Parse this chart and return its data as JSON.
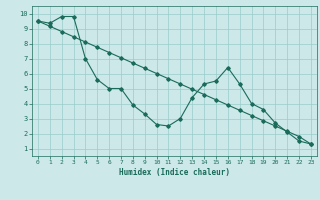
{
  "xlabel": "Humidex (Indice chaleur)",
  "ylabel": "",
  "xlim": [
    -0.5,
    23.5
  ],
  "ylim": [
    0.5,
    10.5
  ],
  "xticks": [
    0,
    1,
    2,
    3,
    4,
    5,
    6,
    7,
    8,
    9,
    10,
    11,
    12,
    13,
    14,
    15,
    16,
    17,
    18,
    19,
    20,
    21,
    22,
    23
  ],
  "yticks": [
    1,
    2,
    3,
    4,
    5,
    6,
    7,
    8,
    9,
    10
  ],
  "bg_color": "#cce8e8",
  "grid_color": "#99cccc",
  "line_color": "#1a6b5a",
  "line1_x": [
    0,
    1,
    2,
    3,
    4,
    5,
    6,
    7,
    8,
    9,
    10,
    11,
    12,
    13,
    14,
    15,
    16,
    17,
    18,
    19,
    20,
    21,
    22,
    23
  ],
  "line1_y": [
    9.5,
    9.35,
    9.8,
    9.8,
    7.0,
    5.6,
    5.0,
    5.0,
    3.9,
    3.3,
    2.6,
    2.5,
    3.0,
    4.4,
    5.3,
    5.5,
    6.4,
    5.3,
    4.0,
    3.6,
    2.7,
    2.1,
    1.5,
    1.3
  ],
  "line2_x": [
    0,
    1,
    2,
    3,
    4,
    5,
    6,
    7,
    8,
    9,
    10,
    11,
    12,
    13,
    14,
    15,
    16,
    17,
    18,
    19,
    20,
    21,
    22,
    23
  ],
  "line2_y": [
    9.5,
    9.15,
    8.8,
    8.45,
    8.1,
    7.75,
    7.4,
    7.05,
    6.7,
    6.35,
    6.0,
    5.65,
    5.3,
    4.95,
    4.6,
    4.25,
    3.9,
    3.55,
    3.2,
    2.85,
    2.5,
    2.15,
    1.8,
    1.3
  ]
}
